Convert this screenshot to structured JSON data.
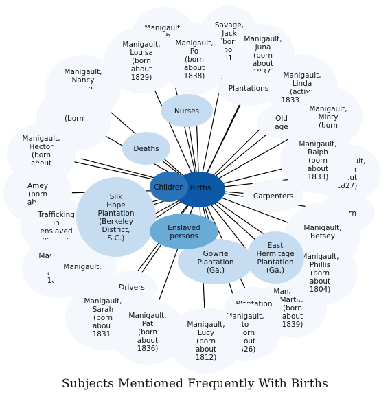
{
  "caption": "Subjects Mentioned Frequently With Births",
  "center": {
    "id": "births",
    "label": "Births"
  },
  "nodes": [
    {
      "id": "sm1",
      "label": "Manigault,\nBob\n(born",
      "tone": "faint"
    },
    {
      "id": "savage-jack",
      "label": "Savage,\nJack\n(born\nabout\n1818)",
      "tone": "faint"
    },
    {
      "id": "juna",
      "label": "Manigault,\nJuna\n(born\nabout\n1837)",
      "tone": "faint"
    },
    {
      "id": "louisa",
      "label": "Manigault,\nLouisa\n(born\nabout\n1829)",
      "tone": "faint"
    },
    {
      "id": "po",
      "label": "Manigault,\nPo\n(born\nabout\n1838)",
      "tone": "faint"
    },
    {
      "id": "linda",
      "label": "Manigault,\nLinda\n(active\n1833-1849)",
      "tone": "faint"
    },
    {
      "id": "nancy",
      "label": "Manigault,\nNancy\n(born\nabout\n1817)",
      "tone": "faint"
    },
    {
      "id": "plantations",
      "label": "Plantations",
      "tone": "faint"
    },
    {
      "id": "minty",
      "label": "Manigault,\nMinty\n(born",
      "tone": "faint"
    },
    {
      "id": "nurses",
      "label": "Nurses",
      "tone": "light"
    },
    {
      "id": "old-age",
      "label": "Old\nage",
      "tone": "faint"
    },
    {
      "id": "born-hidden",
      "label": "(born",
      "tone": "faint"
    },
    {
      "id": "hector-a",
      "label": "Manigault,\nHector\n(born\nabout\n1828)",
      "tone": "faint"
    },
    {
      "id": "hector-b",
      "label": "Manigault,\nHector\n(born\nabout\n1828)",
      "tone": "faint"
    },
    {
      "id": "deaths",
      "label": "Deaths",
      "tone": "light"
    },
    {
      "id": "ralph",
      "label": "Manigault,\nRalph\n(born\nabout\n1833)",
      "tone": "faint"
    },
    {
      "id": "m1827",
      "label": "Manigault,\n(born\nabout\n1827)",
      "tone": "faint"
    },
    {
      "id": "children",
      "label": "Children",
      "tone": "mid"
    },
    {
      "id": "amey",
      "label": "Amey\n(born\nabout",
      "tone": "faint"
    },
    {
      "id": "carpenters",
      "label": "Carpenters",
      "tone": "faint"
    },
    {
      "id": "silk-hope",
      "label": "Silk\nHope\nPlantation\n(Berkeley\nDistrict,\nS.C.)",
      "tone": "light"
    },
    {
      "id": "trafficking",
      "label": "Trafficking\nin\nenslaved\npersons",
      "tone": "faint"
    },
    {
      "id": "born-right",
      "label": "(born",
      "tone": "faint"
    },
    {
      "id": "betsey",
      "label": "Manigault,\nBetsey\n(born",
      "tone": "faint"
    },
    {
      "id": "enslaved",
      "label": "Enslaved\npersons",
      "tone": "medium"
    },
    {
      "id": "gowrie",
      "label": "Gowrie\nPlantation\n(Ga.)",
      "tone": "light"
    },
    {
      "id": "east-hermitage",
      "label": "East\nHermitage\nPlantation\n(Ga.)",
      "tone": "light"
    },
    {
      "id": "m1816",
      "label": "Manigault,\n(born\nabout\n1816)",
      "tone": "faint"
    },
    {
      "id": "phillis",
      "label": "Manigault,\nPhillis\n(born\nabout\n1804)",
      "tone": "faint"
    },
    {
      "id": "ml",
      "label": "Manigault,",
      "tone": "faint"
    },
    {
      "id": "drivers",
      "label": "Drivers",
      "tone": "faint"
    },
    {
      "id": "martha",
      "label": "Manigault,\nMartha\n(born\nabout\n1839)",
      "tone": "faint"
    },
    {
      "id": "plantation-cooks",
      "label": "Plantation\ncooks",
      "tone": "faint"
    },
    {
      "id": "sarah",
      "label": "Manigault,\nSarah\n(born\nabout\n1831)",
      "tone": "faint"
    },
    {
      "id": "pat",
      "label": "Manigault,\nPat\n(born\nabout\n1836)",
      "tone": "faint"
    },
    {
      "id": "m1826",
      "label": "Manigault,\nto\n(born\nabout\n1826)",
      "tone": "faint"
    },
    {
      "id": "lucy",
      "label": "Manigault,\nLucy\n(born\nabout\n1812)",
      "tone": "faint"
    }
  ],
  "colors": {
    "center": "#0d58a6",
    "mid": "#2a72b8",
    "medium": "#6aaad7",
    "light": "#c6dcf0",
    "faint": "#f4f8fd",
    "edge": "#000000",
    "text": "#111111"
  }
}
